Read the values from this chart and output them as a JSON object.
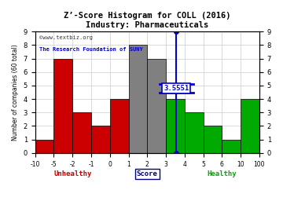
{
  "title": "Z’-Score Histogram for COLL (2016)",
  "subtitle": "Industry: Pharmaceuticals",
  "watermark1": "©www.textbiz.org",
  "watermark2": "The Research Foundation of SUNY",
  "xlabel": "Score",
  "ylabel": "Number of companies (60 total)",
  "ylim": [
    0,
    9
  ],
  "yticks": [
    0,
    1,
    2,
    3,
    4,
    5,
    6,
    7,
    8,
    9
  ],
  "score_value": 3.5551,
  "score_label": "3.5551",
  "bin_edges_real": [
    -10,
    -5,
    -2,
    -1,
    0,
    1,
    2,
    3,
    4,
    5,
    6,
    10,
    100
  ],
  "heights": [
    1,
    7,
    3,
    2,
    4,
    8,
    7,
    4,
    3,
    2,
    1,
    4
  ],
  "colors": [
    "#cc0000",
    "#cc0000",
    "#cc0000",
    "#cc0000",
    "#cc0000",
    "#808080",
    "#808080",
    "#00aa00",
    "#00aa00",
    "#00aa00",
    "#00aa00",
    "#00aa00"
  ],
  "xtick_labels": [
    "-10",
    "-5",
    "-2",
    "-1",
    "0",
    "1",
    "2",
    "3",
    "4",
    "5",
    "6",
    "10",
    "100"
  ],
  "unhealthy_color": "#cc0000",
  "healthy_color": "#00aa00",
  "score_line_color": "#0000cc",
  "background_color": "#ffffff",
  "grid_color": "#cccccc"
}
